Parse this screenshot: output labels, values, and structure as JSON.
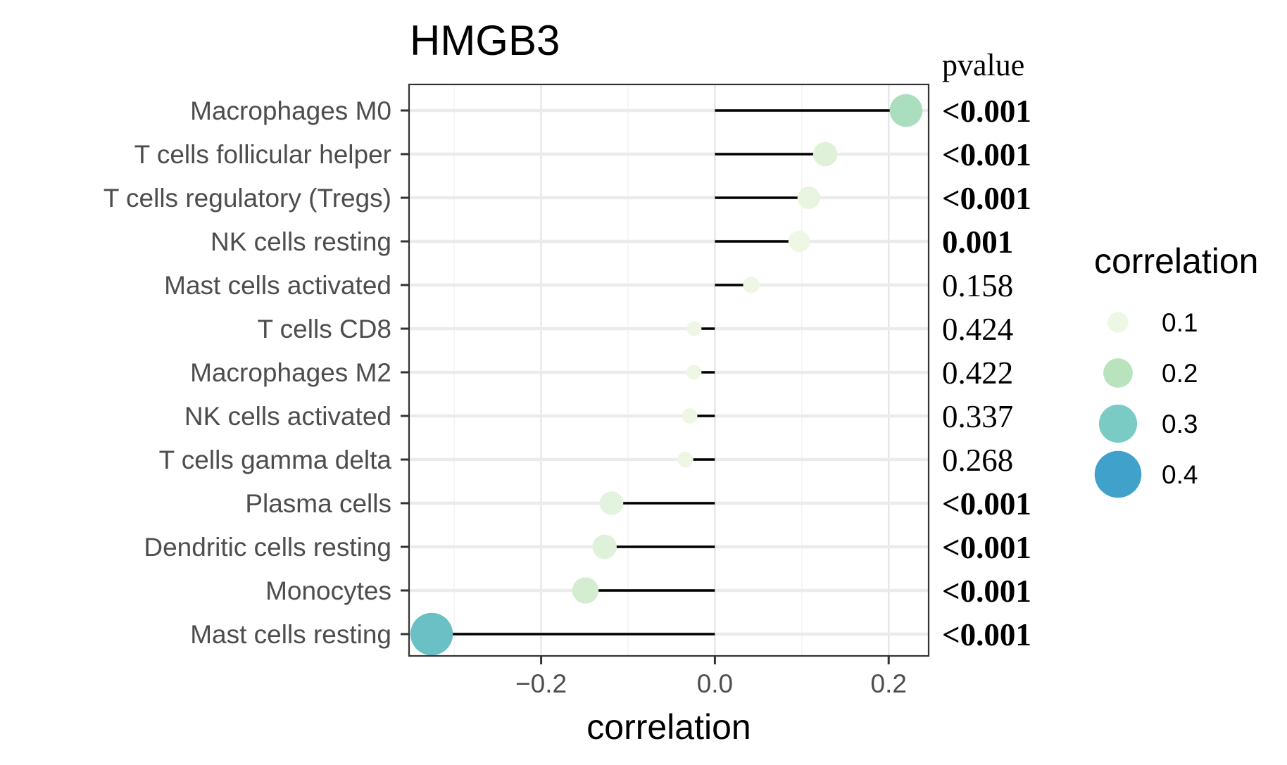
{
  "chart_data": {
    "type": "lollipop",
    "title": "HMGB3",
    "xlabel": "correlation",
    "ylabel": "",
    "xlim": [
      -0.352,
      0.246
    ],
    "x_ticks": [
      -0.2,
      0.0,
      0.2
    ],
    "x_tick_labels": [
      "−0.2",
      "0.0",
      "0.2"
    ],
    "grid": true,
    "pvalue_header": "pvalue",
    "categories": [
      "Macrophages M0",
      "T cells follicular helper",
      "T cells regulatory (Tregs)",
      "NK cells resting",
      "Mast cells activated",
      "T cells CD8",
      "Macrophages M2",
      "NK cells activated",
      "T cells gamma delta",
      "Plasma cells",
      "Dendritic cells resting",
      "Monocytes",
      "Mast cells resting"
    ],
    "values": [
      0.22,
      0.127,
      0.108,
      0.097,
      0.042,
      -0.024,
      -0.024,
      -0.029,
      -0.034,
      -0.119,
      -0.127,
      -0.149,
      -0.326
    ],
    "pvalues": [
      "<0.001",
      "<0.001",
      "<0.001",
      "0.001",
      "0.158",
      "0.424",
      "0.422",
      "0.337",
      "0.268",
      "<0.001",
      "<0.001",
      "<0.001",
      "<0.001"
    ],
    "pvalue_bold": [
      true,
      true,
      true,
      true,
      false,
      false,
      false,
      false,
      false,
      true,
      true,
      true,
      true
    ],
    "legend": {
      "title": "correlation",
      "placement": "right",
      "entries": [
        {
          "label": "0.1",
          "value": 0.1,
          "color": "#eef7e4"
        },
        {
          "label": "0.2",
          "value": 0.2,
          "color": "#b8e3bd"
        },
        {
          "label": "0.3",
          "value": 0.3,
          "color": "#79cbc3"
        },
        {
          "label": "0.4",
          "value": 0.4,
          "color": "#40a1cb"
        }
      ]
    }
  }
}
